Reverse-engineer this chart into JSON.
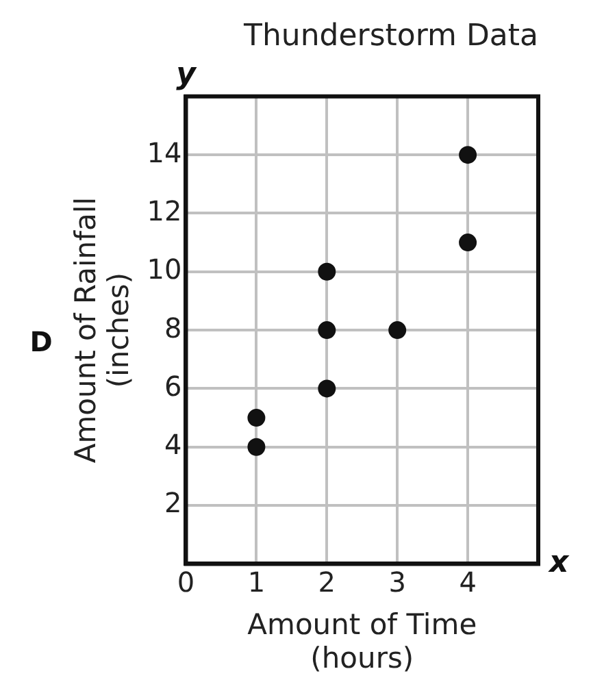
{
  "chart_data": {
    "type": "scatter",
    "title": "Thunderstorm Data",
    "xlabel": "Amount of Time\n(hours)",
    "ylabel": "Amount of Rainfall\n(inches)",
    "annotations": [
      "D",
      "x",
      "y"
    ],
    "x": [
      1,
      1,
      2,
      2,
      2,
      3,
      4,
      4
    ],
    "values": [
      4,
      5,
      6,
      8,
      10,
      8,
      11,
      14
    ],
    "color": "#111111",
    "marker": "circle",
    "grid": true,
    "xlim": [
      0,
      5
    ],
    "xticks": [
      0,
      1,
      2,
      3,
      4,
      {
        "value": 5,
        "label": null
      }
    ],
    "ylim": [
      0,
      16
    ],
    "yticks": [
      {
        "value": 0,
        "label": null
      },
      2,
      4,
      6,
      8,
      10,
      12,
      14,
      {
        "value": 16,
        "label": null
      }
    ]
  }
}
